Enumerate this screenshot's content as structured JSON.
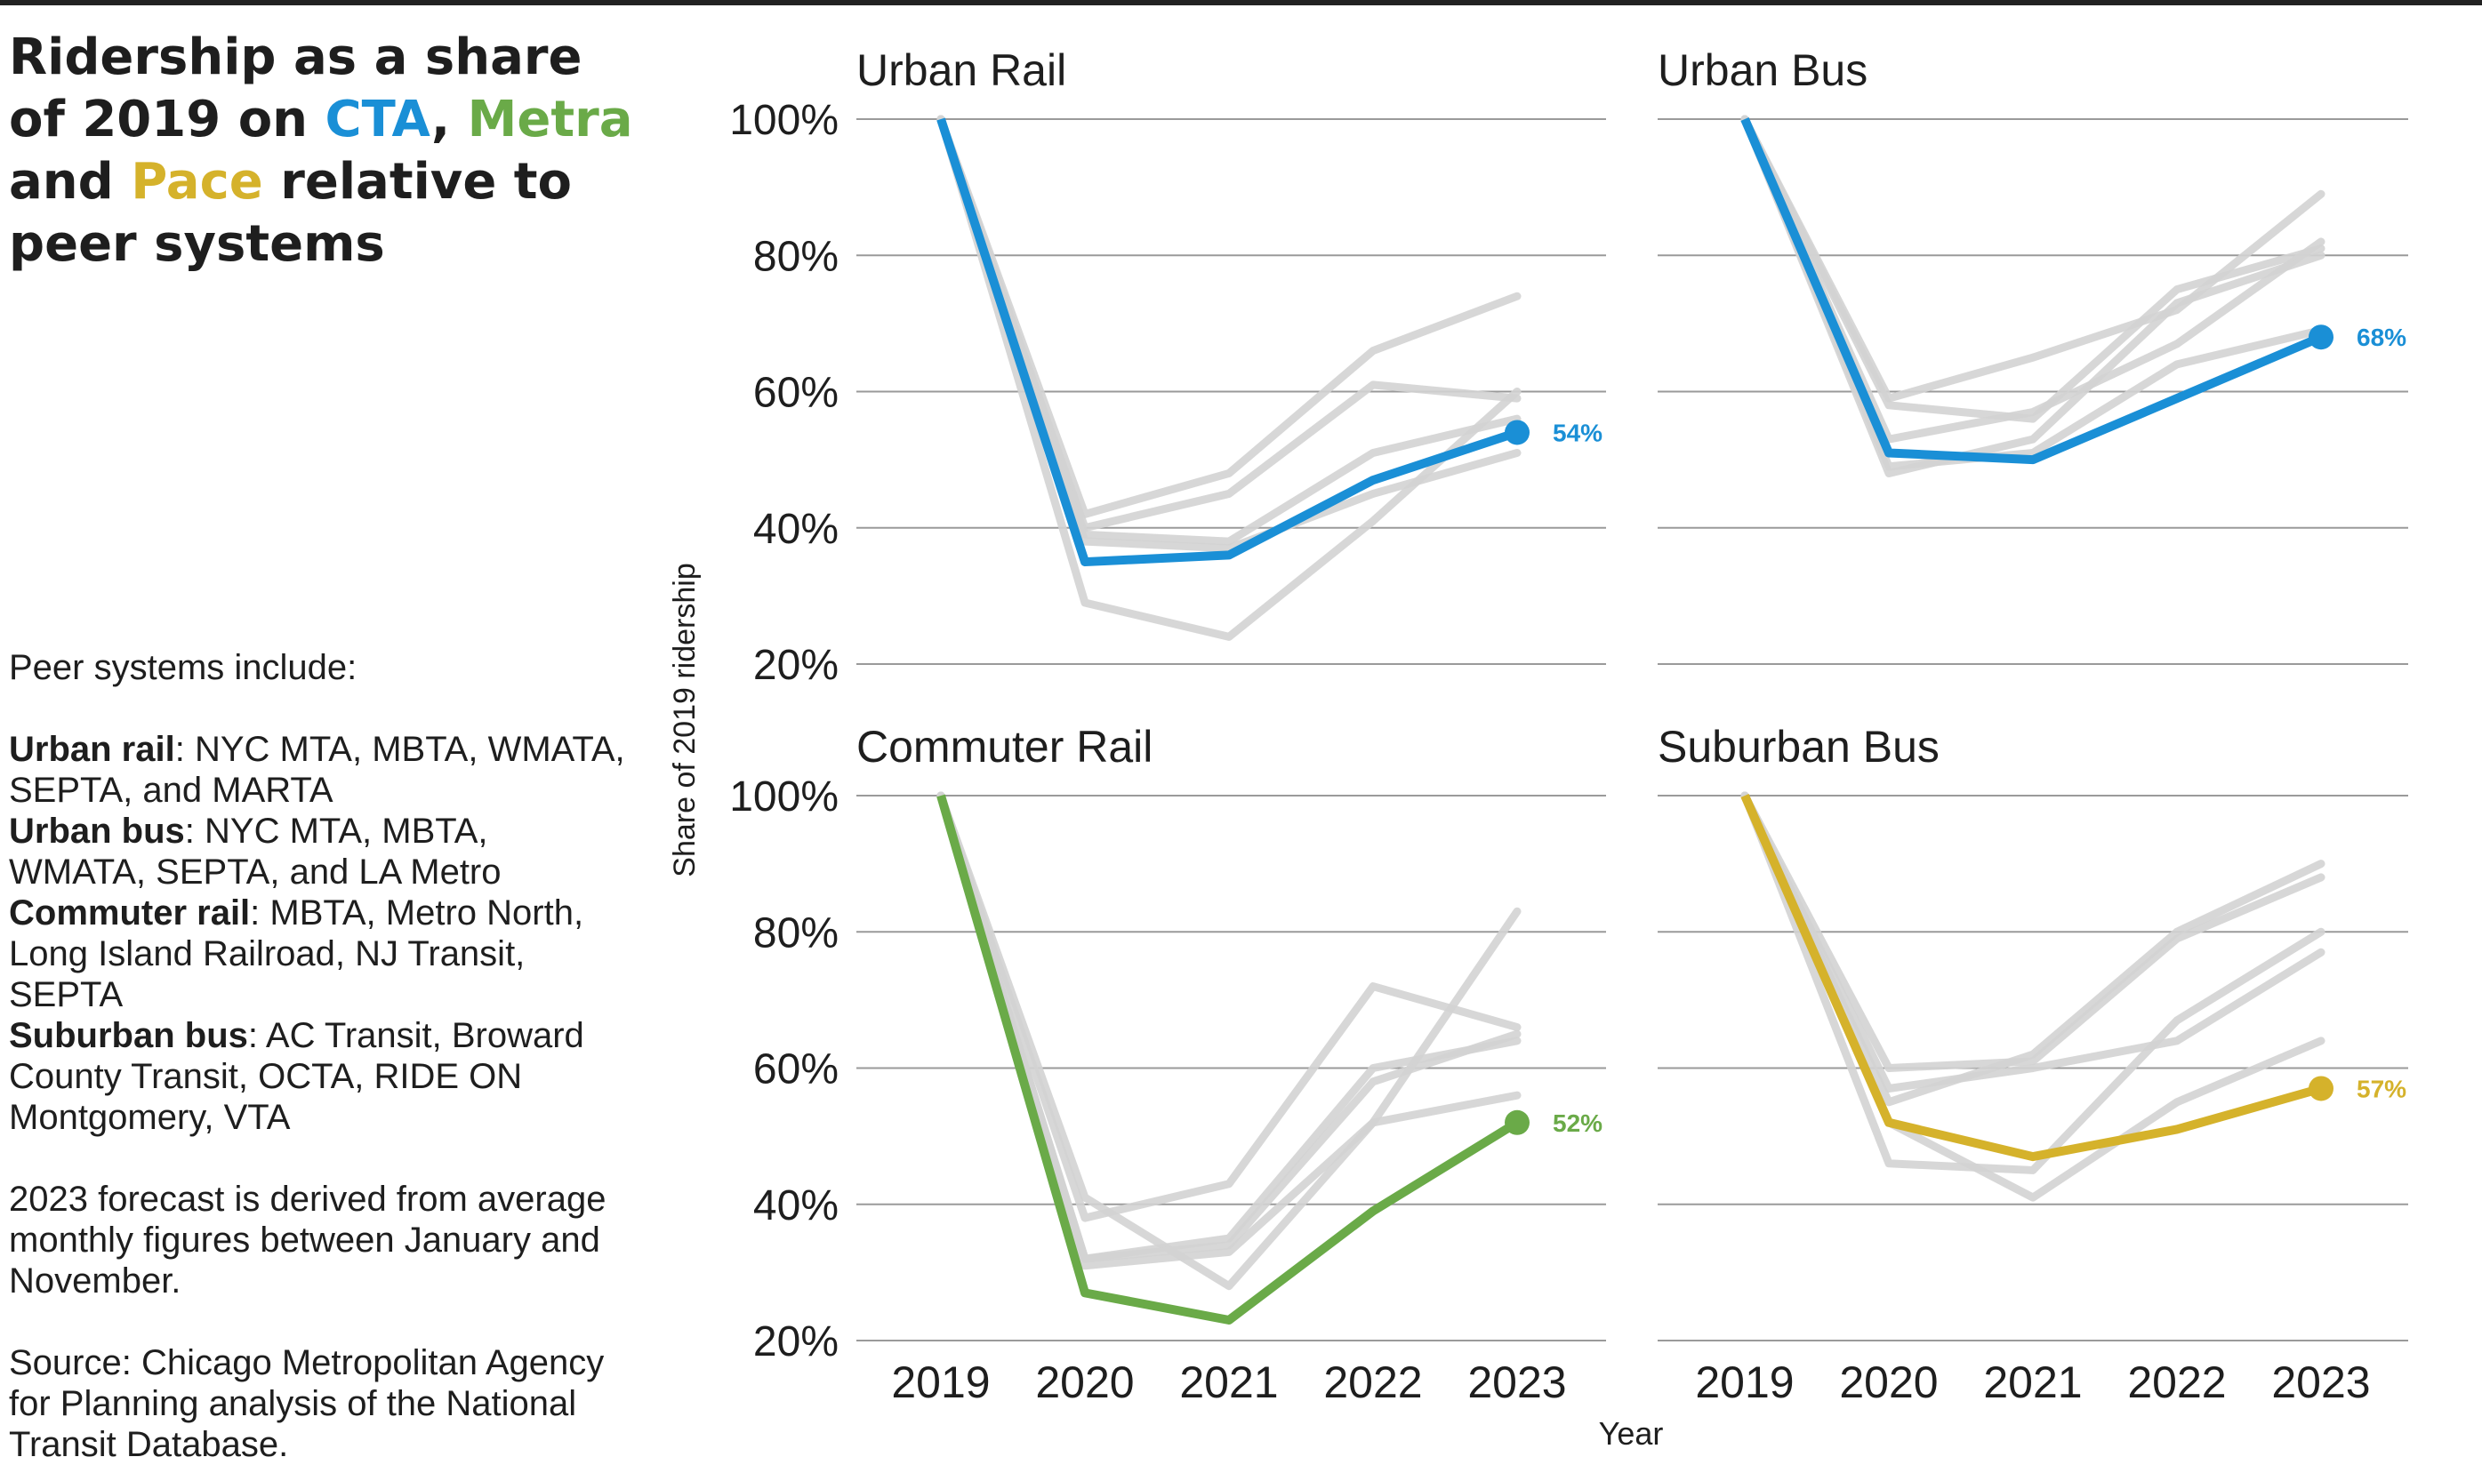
{
  "title": {
    "part1": "Ridership as a share of 2019 on ",
    "cta": "CTA",
    "sep1": ", ",
    "metra": "Metra",
    "part2": " and ",
    "pace": "Pace",
    "part3": " relative to peer systems"
  },
  "notes": {
    "intro": "Peer systems include:",
    "peers": [
      {
        "label": "Urban rail",
        "text": ": NYC MTA, MBTA, WMATA, SEPTA, and MARTA"
      },
      {
        "label": "Urban bus",
        "text": ": NYC MTA, MBTA, WMATA, SEPTA, and LA Metro"
      },
      {
        "label": "Commuter rail",
        "text": ": MBTA, Metro North, Long Island Railroad, NJ Transit, SEPTA"
      },
      {
        "label": "Suburban bus",
        "text": ": AC Transit, Broward County Transit, OCTA, RIDE ON Montgomery, VTA"
      }
    ],
    "forecast": "2023 forecast is derived from average monthly figures between January and November.",
    "source": "Source: Chicago Metropolitan Agency for Planning analysis of the National Transit Database."
  },
  "colors": {
    "cta": "#1a8fd6",
    "metra": "#6aaa48",
    "pace": "#d5b22b",
    "peer": "#d3d3d3",
    "grid": "#9a9a9a"
  },
  "chart_data": {
    "type": "line",
    "xlabel": "Year",
    "ylabel": "Share of 2019 ridership",
    "x": [
      2019,
      2020,
      2021,
      2022,
      2023
    ],
    "y_ticks": [
      "20%",
      "40%",
      "60%",
      "80%",
      "100%"
    ],
    "ylim": [
      20,
      100
    ],
    "grid": true,
    "panels": [
      {
        "title": "Urban Rail",
        "highlight": {
          "values": [
            100,
            35,
            36,
            47,
            54
          ],
          "label": "54%",
          "color": "#1a8fd6"
        },
        "peers": [
          [
            100,
            29,
            24,
            41,
            60
          ],
          [
            100,
            39,
            38,
            51,
            56
          ],
          [
            100,
            42,
            48,
            66,
            74
          ],
          [
            100,
            40,
            45,
            61,
            59
          ],
          [
            100,
            38,
            37,
            45,
            51
          ]
        ]
      },
      {
        "title": "Urban Bus",
        "highlight": {
          "values": [
            100,
            51,
            50,
            59,
            68
          ],
          "label": "68%",
          "color": "#1a8fd6"
        },
        "peers": [
          [
            100,
            58,
            56,
            75,
            81
          ],
          [
            100,
            53,
            57,
            67,
            82
          ],
          [
            100,
            59,
            65,
            72,
            89
          ],
          [
            100,
            48,
            53,
            73,
            80
          ],
          [
            100,
            49,
            51,
            64,
            69
          ]
        ]
      },
      {
        "title": "Commuter Rail",
        "highlight": {
          "values": [
            100,
            27,
            23,
            39,
            52
          ],
          "label": "52%",
          "color": "#6aaa48"
        },
        "peers": [
          [
            100,
            38,
            43,
            72,
            66
          ],
          [
            100,
            32,
            35,
            60,
            64
          ],
          [
            100,
            41,
            28,
            52,
            83
          ],
          [
            100,
            31,
            33,
            52,
            56
          ],
          [
            100,
            32,
            34,
            58,
            65
          ]
        ]
      },
      {
        "title": "Suburban Bus",
        "highlight": {
          "values": [
            100,
            52,
            47,
            51,
            57
          ],
          "label": "57%",
          "color": "#d5b22b"
        },
        "peers": [
          [
            100,
            46,
            45,
            67,
            80
          ],
          [
            100,
            60,
            61,
            79,
            88
          ],
          [
            100,
            52,
            41,
            55,
            64
          ],
          [
            100,
            55,
            62,
            80,
            90
          ],
          [
            100,
            57,
            60,
            64,
            77
          ]
        ]
      }
    ]
  }
}
